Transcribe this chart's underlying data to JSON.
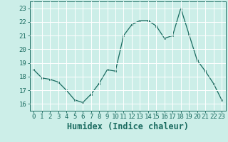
{
  "x": [
    0,
    1,
    2,
    3,
    4,
    5,
    6,
    7,
    8,
    9,
    10,
    11,
    12,
    13,
    14,
    15,
    16,
    17,
    18,
    19,
    20,
    21,
    22,
    23
  ],
  "y": [
    18.5,
    17.9,
    17.8,
    17.6,
    17.0,
    16.3,
    16.1,
    16.7,
    17.5,
    18.5,
    18.4,
    21.0,
    21.8,
    22.1,
    22.1,
    21.7,
    20.8,
    21.0,
    23.0,
    21.1,
    19.2,
    18.4,
    17.5,
    16.3
  ],
  "xlabel": "Humidex (Indice chaleur)",
  "ylim": [
    15.5,
    23.5
  ],
  "xlim": [
    -0.5,
    23.5
  ],
  "yticks": [
    16,
    17,
    18,
    19,
    20,
    21,
    22,
    23
  ],
  "xticks": [
    0,
    1,
    2,
    3,
    4,
    5,
    6,
    7,
    8,
    9,
    10,
    11,
    12,
    13,
    14,
    15,
    16,
    17,
    18,
    19,
    20,
    21,
    22,
    23
  ],
  "line_color": "#1a6b60",
  "marker_color": "#1a6b60",
  "bg_color": "#cceee8",
  "grid_color": "#ffffff",
  "tick_color": "#1a6b60",
  "xlabel_color": "#1a6b60",
  "tick_fontsize": 6.5,
  "xlabel_fontsize": 8.5
}
